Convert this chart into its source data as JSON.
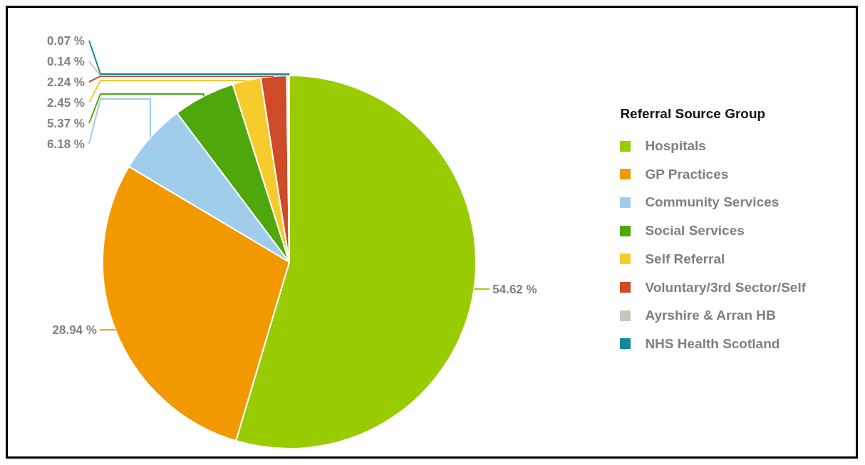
{
  "chart_data": {
    "type": "pie",
    "legend_title": "Referral Source Group",
    "legend": "right",
    "categories": [
      "Hospitals",
      "GP Practices",
      "Community Services",
      "Social Services",
      "Self Referral",
      "Voluntary/3rd Sector/Self",
      "Ayrshire & Arran HB",
      "NHS Health Scotland"
    ],
    "values": [
      54.62,
      28.94,
      6.18,
      5.37,
      2.45,
      2.24,
      0.14,
      0.07
    ],
    "value_labels": [
      "54.62 %",
      "28.94 %",
      "6.18 %",
      "5.37 %",
      "2.45 %",
      "2.24 %",
      "0.14 %",
      "0.07 %"
    ],
    "colors": [
      "#99cc00",
      "#f29900",
      "#a1cdec",
      "#4ea80b",
      "#f5cc2c",
      "#cf4a26",
      "#c8c6b8",
      "#15869e"
    ]
  }
}
